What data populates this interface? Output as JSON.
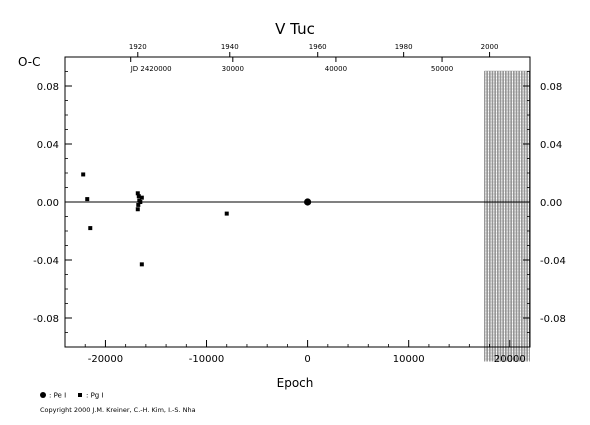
{
  "chart_data": {
    "type": "scatter",
    "title": "V Tuc",
    "xlabel": "Epoch",
    "ylabel": "O-C",
    "xlim": [
      -24000,
      22000
    ],
    "ylim": [
      -0.1,
      0.1
    ],
    "x_ticks": [
      "-20000",
      "-10000",
      "0",
      "10000",
      "20000"
    ],
    "y_ticks": [
      "0.08",
      "0.04",
      "0.00",
      "-0.04",
      "-0.08"
    ],
    "y_tick_values": [
      0.08,
      0.04,
      0.0,
      -0.04,
      -0.08
    ],
    "top_year_axis": {
      "labels": [
        "1920",
        "1940",
        "1960",
        "1980",
        "2000"
      ],
      "epochs": [
        -16800,
        -7700,
        1000,
        9500,
        18000
      ]
    },
    "jd_axis": {
      "labels": [
        "JD 2420000",
        "30000",
        "40000",
        "50000"
      ],
      "epochs": [
        -17500,
        -7400,
        2800,
        13300
      ]
    },
    "grid": false,
    "zero_line": true,
    "hatched_region": [
      17500,
      22000
    ],
    "series": [
      {
        "name": "Pe I",
        "marker": "circle",
        "points": [
          {
            "x": 0,
            "y": 0.0
          }
        ]
      },
      {
        "name": "Pg I",
        "marker": "square",
        "points": [
          {
            "x": -22200,
            "y": 0.019
          },
          {
            "x": -21800,
            "y": 0.002
          },
          {
            "x": -21500,
            "y": -0.018
          },
          {
            "x": -16800,
            "y": 0.006
          },
          {
            "x": -16700,
            "y": 0.004
          },
          {
            "x": -16650,
            "y": 0.001
          },
          {
            "x": -16750,
            "y": -0.002
          },
          {
            "x": -16800,
            "y": -0.005
          },
          {
            "x": -16400,
            "y": 0.003
          },
          {
            "x": -16550,
            "y": 0.0
          },
          {
            "x": -16400,
            "y": -0.043
          },
          {
            "x": -8000,
            "y": -0.008
          }
        ]
      }
    ],
    "legend": [
      {
        "marker": "circle",
        "label": ": Pe I"
      },
      {
        "marker": "square",
        "label": ": Pg I"
      }
    ],
    "legend_position": "bottom-left",
    "copyright": "Copyright 2000 J.M. Kreiner, C.-H. Kim, I.-S. Nha"
  }
}
